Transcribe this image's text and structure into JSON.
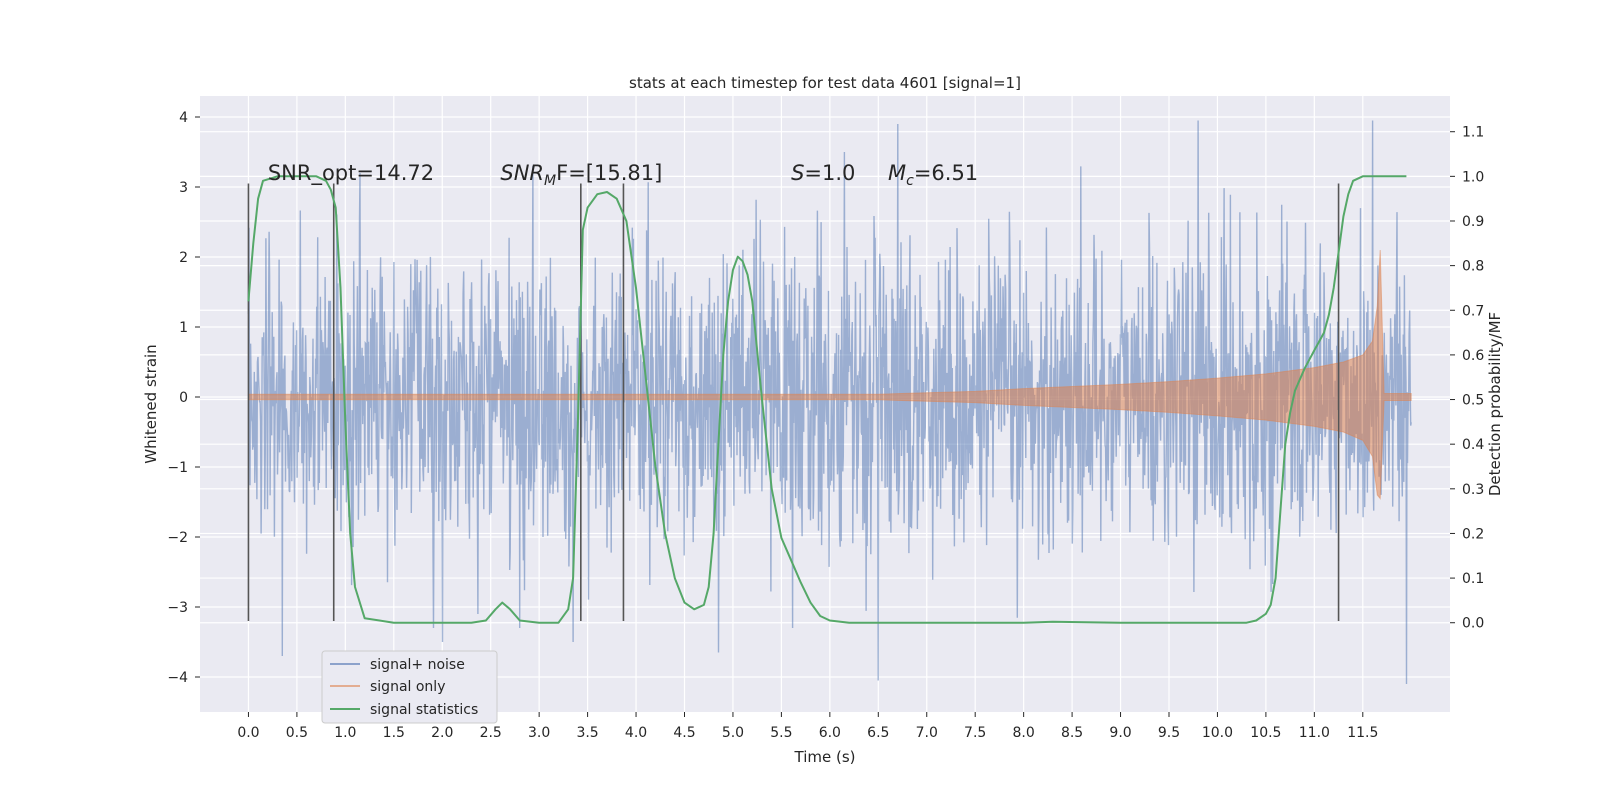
{
  "chart_data": {
    "type": "line",
    "title": "stats at each timestep for test data 4601 [signal=1]",
    "xlabel": "Time (s)",
    "ylabel_left": "Whitened strain",
    "ylabel_right": "Detection probability/MF",
    "xlim": [
      -0.5,
      12.4
    ],
    "ylim_left": [
      -4.5,
      4.3
    ],
    "ylim_right": [
      -0.2,
      1.18
    ],
    "x_ticks": [
      0.0,
      0.5,
      1.0,
      1.5,
      2.0,
      2.5,
      3.0,
      3.5,
      4.0,
      4.5,
      5.0,
      5.5,
      6.0,
      6.5,
      7.0,
      7.5,
      8.0,
      8.5,
      9.0,
      9.5,
      10.0,
      10.5,
      11.0,
      11.5
    ],
    "x_tick_labels": [
      "0.0",
      "0.5",
      "1.0",
      "1.5",
      "2.0",
      "2.5",
      "3.0",
      "3.5",
      "4.0",
      "4.5",
      "5.0",
      "5.5",
      "6.0",
      "6.5",
      "7.0",
      "7.5",
      "8.0",
      "8.5",
      "9.0",
      "9.5",
      "10.0",
      "10.5",
      "11.0",
      "11.5"
    ],
    "y_left_ticks": [
      -4,
      -3,
      -2,
      -1,
      0,
      1,
      2,
      3,
      4
    ],
    "y_left_tick_labels": [
      "−4",
      "−3",
      "−2",
      "−1",
      "0",
      "1",
      "2",
      "3",
      "4"
    ],
    "y_right_ticks": [
      0.0,
      0.1,
      0.2,
      0.3,
      0.4,
      0.5,
      0.6,
      0.7,
      0.8,
      0.9,
      1.0,
      1.1
    ],
    "y_right_tick_labels": [
      "0.0",
      "0.1",
      "0.2",
      "0.3",
      "0.4",
      "0.5",
      "0.6",
      "0.7",
      "0.8",
      "0.9",
      "1.0",
      "1.1"
    ],
    "grid": true,
    "legend_position": "bottom-left",
    "annotations": [
      {
        "text": "SNR_opt=14.72",
        "x": 0.2,
        "y": 3.1
      },
      {
        "text_main": "SNR",
        "text_sub": "M",
        "text_tail": "F=[15.81]",
        "x": 2.6,
        "y": 3.1
      },
      {
        "text_main": "S",
        "text_tail": "=1.0",
        "x": 5.6,
        "y": 3.1
      },
      {
        "text_main": "M",
        "text_sub": "c",
        "text_tail": "=6.51",
        "x": 6.6,
        "y": 3.1
      }
    ],
    "vertical_lines": {
      "x": [
        0.0,
        0.88,
        3.43,
        3.87,
        11.25
      ],
      "y_range": [
        -3.2,
        3.05
      ],
      "color": "#555555"
    },
    "series": [
      {
        "name": "signal+ noise",
        "axis": "left",
        "color": "#4c72b0",
        "alpha": 0.5,
        "x_range": [
          0.0,
          12.0
        ],
        "typical_abs_amplitude": 1.3,
        "peak_extremes": [
          {
            "x": 0.35,
            "y": -3.7
          },
          {
            "x": 1.15,
            "y": 3.2
          },
          {
            "x": 2.0,
            "y": -3.5
          },
          {
            "x": 3.35,
            "y": -3.5
          },
          {
            "x": 4.85,
            "y": -3.65
          },
          {
            "x": 6.15,
            "y": 3.5
          },
          {
            "x": 6.5,
            "y": -4.05
          },
          {
            "x": 6.7,
            "y": 3.9
          },
          {
            "x": 9.8,
            "y": 3.95
          },
          {
            "x": 11.6,
            "y": 3.95
          },
          {
            "x": 11.95,
            "y": -4.1
          }
        ]
      },
      {
        "name": "signal only",
        "axis": "left",
        "color": "#dd8452",
        "alpha": 0.5,
        "envelope_x": [
          0.0,
          6.5,
          7.0,
          7.5,
          8.0,
          8.5,
          9.0,
          9.5,
          10.0,
          10.5,
          11.0,
          11.3,
          11.5,
          11.6,
          11.65,
          11.68,
          11.72,
          12.0
        ],
        "envelope_upper": [
          0.04,
          0.04,
          0.06,
          0.08,
          0.12,
          0.15,
          0.18,
          0.22,
          0.27,
          0.33,
          0.42,
          0.5,
          0.6,
          0.8,
          1.3,
          2.1,
          0.05,
          0.05
        ],
        "envelope_lower": [
          -0.04,
          -0.04,
          -0.06,
          -0.08,
          -0.12,
          -0.15,
          -0.18,
          -0.22,
          -0.27,
          -0.33,
          -0.42,
          -0.5,
          -0.62,
          -0.85,
          -1.4,
          -1.45,
          -0.05,
          -0.05
        ]
      },
      {
        "name": "signal statistics",
        "axis": "right",
        "color": "#55a868",
        "x": [
          0.0,
          0.05,
          0.1,
          0.15,
          0.3,
          0.5,
          0.7,
          0.8,
          0.85,
          0.9,
          0.95,
          1.0,
          1.05,
          1.1,
          1.2,
          1.5,
          2.0,
          2.3,
          2.45,
          2.55,
          2.62,
          2.7,
          2.8,
          3.0,
          3.2,
          3.3,
          3.35,
          3.4,
          3.45,
          3.5,
          3.6,
          3.7,
          3.8,
          3.9,
          4.0,
          4.1,
          4.2,
          4.3,
          4.4,
          4.5,
          4.6,
          4.7,
          4.75,
          4.8,
          4.85,
          4.9,
          4.95,
          5.0,
          5.05,
          5.1,
          5.15,
          5.2,
          5.3,
          5.4,
          5.5,
          5.6,
          5.7,
          5.8,
          5.9,
          6.0,
          6.2,
          7.0,
          8.0,
          8.3,
          9.0,
          10.0,
          10.3,
          10.4,
          10.5,
          10.55,
          10.6,
          10.65,
          10.7,
          10.75,
          10.8,
          10.9,
          11.0,
          11.05,
          11.1,
          11.15,
          11.2,
          11.25,
          11.3,
          11.35,
          11.4,
          11.5,
          11.6,
          11.7,
          11.8,
          11.9,
          11.95
        ],
        "y": [
          0.72,
          0.85,
          0.95,
          0.99,
          1.0,
          1.0,
          1.0,
          0.99,
          0.97,
          0.93,
          0.75,
          0.45,
          0.2,
          0.08,
          0.01,
          0.0,
          0.0,
          0.0,
          0.005,
          0.03,
          0.045,
          0.03,
          0.005,
          0.0,
          0.0,
          0.03,
          0.1,
          0.45,
          0.88,
          0.93,
          0.96,
          0.965,
          0.95,
          0.9,
          0.75,
          0.55,
          0.35,
          0.2,
          0.1,
          0.045,
          0.03,
          0.04,
          0.08,
          0.2,
          0.4,
          0.6,
          0.72,
          0.79,
          0.82,
          0.81,
          0.78,
          0.72,
          0.5,
          0.3,
          0.19,
          0.14,
          0.09,
          0.045,
          0.015,
          0.005,
          0.0,
          0.0,
          0.0,
          0.002,
          0.0,
          0.0,
          0.0,
          0.005,
          0.02,
          0.04,
          0.1,
          0.25,
          0.4,
          0.47,
          0.52,
          0.57,
          0.61,
          0.63,
          0.65,
          0.69,
          0.75,
          0.83,
          0.91,
          0.96,
          0.99,
          1.0,
          1.0,
          1.0,
          1.0,
          1.0,
          1.0
        ]
      }
    ]
  }
}
